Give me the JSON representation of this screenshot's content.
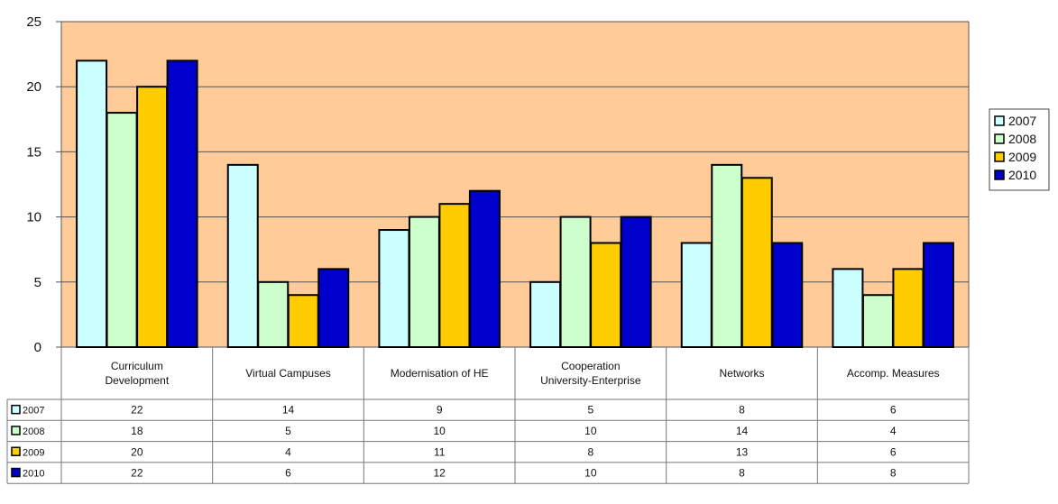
{
  "chart_data": {
    "type": "bar",
    "categories": [
      [
        "Curriculum",
        "Development"
      ],
      [
        "Virtual Campuses"
      ],
      [
        "Modernisation of HE"
      ],
      [
        "Cooperation",
        "University-Enterprise"
      ],
      [
        "Networks"
      ],
      [
        "Accomp. Measures"
      ]
    ],
    "series": [
      {
        "name": "2007",
        "values": [
          22,
          14,
          9,
          5,
          8,
          6
        ],
        "color": "#ccffff"
      },
      {
        "name": "2008",
        "values": [
          18,
          5,
          10,
          10,
          14,
          4
        ],
        "color": "#ccffcc"
      },
      {
        "name": "2009",
        "values": [
          20,
          4,
          11,
          8,
          13,
          6
        ],
        "color": "#ffcc00"
      },
      {
        "name": "2010",
        "values": [
          22,
          6,
          12,
          10,
          8,
          8
        ],
        "color": "#0000cc"
      }
    ],
    "ylim": [
      0,
      25
    ],
    "yticks": [
      0,
      5,
      10,
      15,
      20,
      25
    ],
    "grid": true,
    "legend": "right",
    "plot_background": "#ffcc99",
    "data_table": true,
    "title": "",
    "xlabel": "",
    "ylabel": ""
  }
}
